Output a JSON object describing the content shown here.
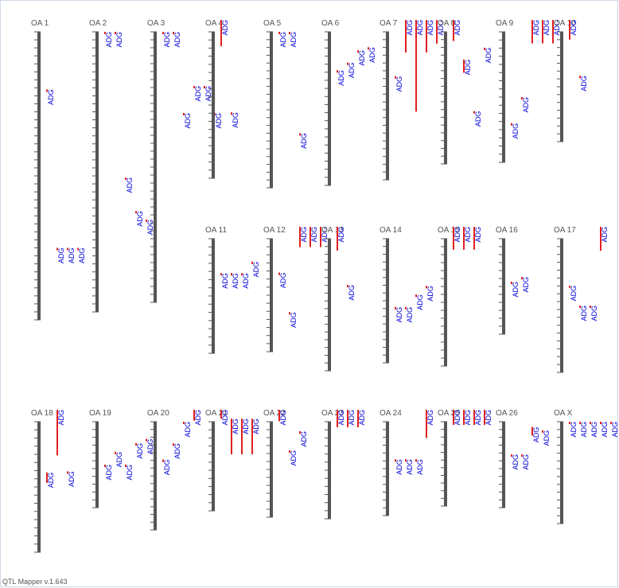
{
  "app": {
    "footer": "QTL Mapper v.1.643"
  },
  "colors": {
    "chromosome": "#555555",
    "tick": "#555555",
    "qtl_bar": "#e02020",
    "qtl_label": "#0000dd",
    "chrom_label": "#555555"
  },
  "chromosomes": [
    {
      "name": "OA 1",
      "qtl": [
        {
          "label": "ADG",
          "pos": 0.2,
          "len": 0.0
        },
        {
          "label": "ADG",
          "pos": 0.75,
          "len": 0.0
        },
        {
          "label": "ADG",
          "pos": 0.75,
          "len": 0.0
        },
        {
          "label": "ADG",
          "pos": 0.75,
          "len": 0.0
        }
      ]
    },
    {
      "name": "OA 2",
      "qtl": [
        {
          "label": "ADG",
          "pos": 0.0,
          "len": 0.0
        },
        {
          "label": "ADG",
          "pos": 0.0,
          "len": 0.0
        },
        {
          "label": "ADG",
          "pos": 0.52,
          "len": 0.0
        },
        {
          "label": "ADG",
          "pos": 0.64,
          "len": 0.0
        },
        {
          "label": "ADG",
          "pos": 0.67,
          "len": 0.0
        }
      ]
    },
    {
      "name": "OA 3",
      "qtl": [
        {
          "label": "ADG",
          "pos": 0.0,
          "len": 0.0
        },
        {
          "label": "ADG",
          "pos": 0.0,
          "len": 0.0
        },
        {
          "label": "ADG",
          "pos": 0.3,
          "len": 0.0
        },
        {
          "label": "ADG",
          "pos": 0.2,
          "len": 0.0
        },
        {
          "label": "ADG",
          "pos": 0.2,
          "len": 0.0
        },
        {
          "label": "ADG",
          "pos": 0.3,
          "len": 0.0
        }
      ]
    },
    {
      "name": "OA 4",
      "qtl": [
        {
          "label": "ADG",
          "pos": 0.0,
          "len": 0.18
        },
        {
          "label": "ADG",
          "pos": 0.55,
          "len": 0.0
        }
      ]
    },
    {
      "name": "OA 5",
      "qtl": [
        {
          "label": "ADG",
          "pos": 0.0,
          "len": 0.0
        },
        {
          "label": "ADG",
          "pos": 0.0,
          "len": 0.0
        },
        {
          "label": "ADG",
          "pos": 0.65,
          "len": 0.0
        }
      ]
    },
    {
      "name": "OA 6",
      "qtl": [
        {
          "label": "ADG",
          "pos": 0.25,
          "len": 0.0
        },
        {
          "label": "ADG",
          "pos": 0.2,
          "len": 0.0
        },
        {
          "label": "ADG",
          "pos": 0.12,
          "len": 0.0
        },
        {
          "label": "ADG",
          "pos": 0.1,
          "len": 0.0
        }
      ]
    },
    {
      "name": "OA 7",
      "qtl": [
        {
          "label": "ADG",
          "pos": 0.3,
          "len": 0.0
        },
        {
          "label": "ADG",
          "pos": 0.0,
          "len": 0.22
        },
        {
          "label": "ADG",
          "pos": 0.0,
          "len": 0.62
        },
        {
          "label": "ADG",
          "pos": 0.0,
          "len": 0.22
        },
        {
          "label": "ADG",
          "pos": 0.0,
          "len": 0.16
        }
      ]
    },
    {
      "name": "OA 8",
      "qtl": [
        {
          "label": "ADG",
          "pos": 0.0,
          "len": 0.16
        },
        {
          "label": "ADG",
          "pos": 0.3,
          "len": 0.1
        },
        {
          "label": "ADG",
          "pos": 0.6,
          "len": 0.0
        },
        {
          "label": "ADG",
          "pos": 0.12,
          "len": 0.0
        }
      ]
    },
    {
      "name": "OA 9",
      "qtl": [
        {
          "label": "ADG",
          "pos": 0.7,
          "len": 0.0
        },
        {
          "label": "ADG",
          "pos": 0.5,
          "len": 0.0
        },
        {
          "label": "ADG",
          "pos": 0.0,
          "len": 0.18
        },
        {
          "label": "ADG",
          "pos": 0.0,
          "len": 0.18
        },
        {
          "label": "ADG",
          "pos": 0.0,
          "len": 0.18
        }
      ]
    },
    {
      "name": "OA 10",
      "qtl": [
        {
          "label": "ADG",
          "pos": 0.0,
          "len": 0.18
        },
        {
          "label": "ADG",
          "pos": 0.4,
          "len": 0.0
        }
      ]
    },
    {
      "name": "OA 11",
      "qtl": [
        {
          "label": "ADG",
          "pos": 0.3,
          "len": 0.0
        },
        {
          "label": "ADG",
          "pos": 0.3,
          "len": 0.0
        },
        {
          "label": "ADG",
          "pos": 0.3,
          "len": 0.0
        },
        {
          "label": "ADG",
          "pos": 0.2,
          "len": 0.0
        }
      ]
    },
    {
      "name": "OA 12",
      "qtl": [
        {
          "label": "ADG",
          "pos": 0.3,
          "len": 0.0
        },
        {
          "label": "ADG",
          "pos": 0.65,
          "len": 0.0
        },
        {
          "label": "ADG",
          "pos": 0.0,
          "len": 0.18
        },
        {
          "label": "ADG",
          "pos": 0.0,
          "len": 0.18
        },
        {
          "label": "ADG",
          "pos": 0.0,
          "len": 0.18
        }
      ]
    },
    {
      "name": "OA 13",
      "qtl": [
        {
          "label": "ADG",
          "pos": 0.0,
          "len": 0.18
        },
        {
          "label": "ADG",
          "pos": 0.35,
          "len": 0.0
        }
      ]
    },
    {
      "name": "OA 14",
      "qtl": [
        {
          "label": "ADG",
          "pos": 0.55,
          "len": 0.0
        },
        {
          "label": "ADG",
          "pos": 0.55,
          "len": 0.0
        },
        {
          "label": "ADG",
          "pos": 0.45,
          "len": 0.0
        },
        {
          "label": "ADG",
          "pos": 0.38,
          "len": 0.0
        }
      ]
    },
    {
      "name": "OA 15",
      "qtl": [
        {
          "label": "ADG",
          "pos": 0.0,
          "len": 0.18
        },
        {
          "label": "ADG",
          "pos": 0.0,
          "len": 0.18
        },
        {
          "label": "ADG",
          "pos": 0.0,
          "len": 0.18
        }
      ]
    },
    {
      "name": "OA 16",
      "qtl": [
        {
          "label": "ADG",
          "pos": 0.45,
          "len": 0.0
        },
        {
          "label": "ADG",
          "pos": 0.4,
          "len": 0.0
        }
      ]
    },
    {
      "name": "OA 17",
      "qtl": [
        {
          "label": "ADG",
          "pos": 0.35,
          "len": 0.0
        },
        {
          "label": "ADG",
          "pos": 0.5,
          "len": 0.0
        },
        {
          "label": "ADG",
          "pos": 0.5,
          "len": 0.0
        },
        {
          "label": "ADG",
          "pos": 0.0,
          "len": 0.18
        }
      ]
    },
    {
      "name": "OA 18",
      "qtl": [
        {
          "label": "ADG",
          "pos": 0.48,
          "len": 0.08
        },
        {
          "label": "ADG",
          "pos": 0.0,
          "len": 0.35
        },
        {
          "label": "ADG",
          "pos": 0.38,
          "len": 0.0
        }
      ]
    },
    {
      "name": "OA 19",
      "qtl": [
        {
          "label": "ADG",
          "pos": 0.5,
          "len": 0.0
        },
        {
          "label": "ADG",
          "pos": 0.35,
          "len": 0.0
        },
        {
          "label": "ADG",
          "pos": 0.5,
          "len": 0.0
        },
        {
          "label": "ADG",
          "pos": 0.25,
          "len": 0.0
        },
        {
          "label": "ADG",
          "pos": 0.2,
          "len": 0.0
        }
      ]
    },
    {
      "name": "OA 20",
      "qtl": [
        {
          "label": "ADG",
          "pos": 0.35,
          "len": 0.0
        },
        {
          "label": "ADG",
          "pos": 0.2,
          "len": 0.0
        },
        {
          "label": "ADG",
          "pos": 0.0,
          "len": 0.0
        },
        {
          "label": "ADG",
          "pos": 0.0,
          "len": 0.1
        }
      ]
    },
    {
      "name": "OA 21",
      "qtl": [
        {
          "label": "ADG",
          "pos": 0.0,
          "len": 0.1
        },
        {
          "label": "ADG",
          "pos": 0.1,
          "len": 0.4
        },
        {
          "label": "ADG",
          "pos": 0.1,
          "len": 0.4
        },
        {
          "label": "ADG",
          "pos": 0.1,
          "len": 0.4
        }
      ]
    },
    {
      "name": "OA 22",
      "qtl": [
        {
          "label": "ADG",
          "pos": 0.0,
          "len": 0.12
        },
        {
          "label": "ADG",
          "pos": 0.3,
          "len": 0.0
        },
        {
          "label": "ADG",
          "pos": 0.1,
          "len": 0.0
        }
      ]
    },
    {
      "name": "OA 23",
      "qtl": [
        {
          "label": "ADG",
          "pos": 0.0,
          "len": 0.18
        },
        {
          "label": "ADG",
          "pos": 0.0,
          "len": 0.18
        },
        {
          "label": "ADG",
          "pos": 0.0,
          "len": 0.18
        }
      ]
    },
    {
      "name": "OA 24",
      "qtl": [
        {
          "label": "ADG",
          "pos": 0.4,
          "len": 0.0
        },
        {
          "label": "ADG",
          "pos": 0.4,
          "len": 0.0
        },
        {
          "label": "ADG",
          "pos": 0.4,
          "len": 0.0
        },
        {
          "label": "ADG",
          "pos": 0.0,
          "len": 0.3
        }
      ]
    },
    {
      "name": "OA 25",
      "qtl": [
        {
          "label": "ADG",
          "pos": 0.0,
          "len": 0.18
        },
        {
          "label": "ADG",
          "pos": 0.0,
          "len": 0.18
        },
        {
          "label": "ADG",
          "pos": 0.0,
          "len": 0.18
        },
        {
          "label": "ADG",
          "pos": 0.0,
          "len": 0.18
        }
      ]
    },
    {
      "name": "OA 26",
      "qtl": [
        {
          "label": "ADG",
          "pos": 0.38,
          "len": 0.0
        },
        {
          "label": "ADG",
          "pos": 0.38,
          "len": 0.0
        },
        {
          "label": "ADG",
          "pos": 0.2,
          "len": 0.1
        },
        {
          "label": "ADG",
          "pos": 0.1,
          "len": 0.0
        }
      ]
    },
    {
      "name": "OA X",
      "qtl": [
        {
          "label": "ADG",
          "pos": 0.0,
          "len": 0.0
        },
        {
          "label": "ADG",
          "pos": 0.0,
          "len": 0.0
        },
        {
          "label": "ADG",
          "pos": 0.0,
          "len": 0.0
        },
        {
          "label": "ADG",
          "pos": 0.0,
          "len": 0.0
        },
        {
          "label": "ADG",
          "pos": 0.0,
          "len": 0.0
        }
      ]
    }
  ]
}
